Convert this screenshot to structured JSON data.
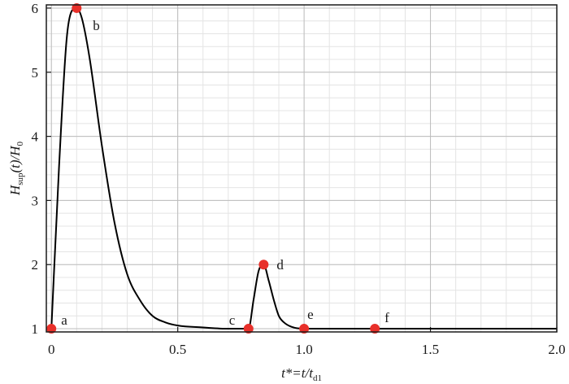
{
  "chart_data": {
    "type": "line",
    "xlabel": {
      "base": "t*=t/t",
      "sub": "d1"
    },
    "ylabel": {
      "p1": "H",
      "sub1": "sup",
      "p2": "(t)/H",
      "sub2": "0"
    },
    "xlim": [
      -0.02,
      2.0
    ],
    "ylim": [
      0.95,
      6.05
    ],
    "x_ticks": [
      "0",
      "0.5",
      "1.0",
      "1.5",
      "2.0"
    ],
    "y_ticks": [
      "1",
      "2",
      "3",
      "4",
      "5",
      "6"
    ],
    "grid": true,
    "line_color": "#000000",
    "marker_color": "#e8302a",
    "series": [
      {
        "x": [
          0.0,
          0.03,
          0.06,
          0.08,
          0.1,
          0.12,
          0.15,
          0.2,
          0.25,
          0.3,
          0.35,
          0.4,
          0.45,
          0.5,
          0.6,
          0.7,
          0.78,
          0.8,
          0.82,
          0.84,
          0.86,
          0.88,
          0.9,
          0.92,
          0.95,
          1.0,
          1.1,
          1.28,
          2.0
        ],
        "y": [
          1.0,
          3.5,
          5.5,
          5.95,
          6.0,
          5.85,
          5.25,
          3.85,
          2.65,
          1.85,
          1.45,
          1.2,
          1.1,
          1.05,
          1.02,
          1.0,
          1.0,
          1.45,
          1.9,
          2.0,
          1.75,
          1.45,
          1.2,
          1.1,
          1.03,
          1.0,
          1.0,
          1.0,
          1.0
        ]
      }
    ],
    "points": [
      {
        "label": "a",
        "x": 0.0,
        "y": 1.0
      },
      {
        "label": "b",
        "x": 0.1,
        "y": 6.0
      },
      {
        "label": "c",
        "x": 0.78,
        "y": 1.0
      },
      {
        "label": "d",
        "x": 0.84,
        "y": 2.0
      },
      {
        "label": "e",
        "x": 1.0,
        "y": 1.0
      },
      {
        "label": "f",
        "x": 1.28,
        "y": 1.0
      }
    ]
  }
}
